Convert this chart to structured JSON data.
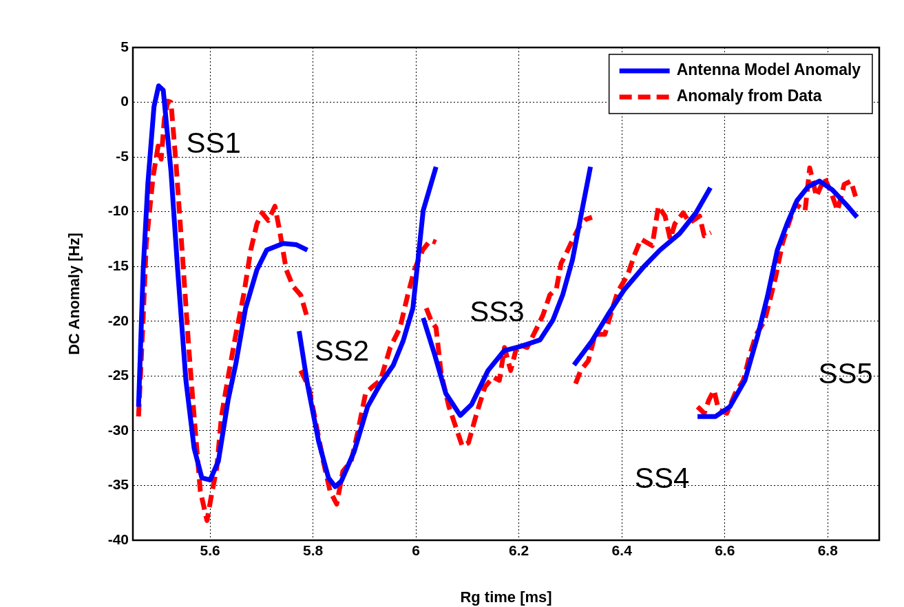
{
  "chart_data": {
    "type": "line",
    "xlabel": "Rg time [ms]",
    "ylabel": "DC Anomaly [Hz]",
    "xlim": [
      5.45,
      6.9
    ],
    "xticks": [
      5.6,
      5.8,
      6,
      6.2,
      6.4,
      6.6,
      6.8
    ],
    "ylim": [
      -40,
      5
    ],
    "yticks": [
      -40,
      -35,
      -30,
      -25,
      -20,
      -15,
      -10,
      -5,
      0,
      5
    ],
    "grid": true,
    "legend": "top right",
    "marker": "none",
    "annotations": [
      "SS1",
      "SS2",
      "SS3",
      "SS4",
      "SS5"
    ],
    "series": [
      {
        "name": "Antenna Model Anomaly",
        "color": "#0000ff",
        "line_style": "solid",
        "x": [
          5.461,
          5.47,
          5.479,
          5.491,
          5.5,
          5.509,
          5.524,
          5.537,
          5.553,
          5.569,
          5.584,
          5.6,
          5.616,
          5.635,
          5.65,
          5.669,
          5.691,
          5.71,
          5.742,
          5.767,
          5.789,
          5.78,
          5.773,
          5.789,
          5.811,
          5.83,
          5.843,
          5.855,
          5.88,
          5.906,
          5.931,
          5.956,
          5.975,
          5.994,
          6.014,
          6.039,
          6.03,
          6.014,
          6.036,
          6.058,
          6.086,
          6.108,
          6.14,
          6.171,
          6.203,
          6.241,
          6.266,
          6.285,
          6.304,
          6.32,
          6.339,
          6.32,
          6.307,
          6.342,
          6.373,
          6.405,
          6.443,
          6.474,
          6.512,
          6.544,
          6.572,
          6.56,
          6.547,
          6.582,
          6.61,
          6.639,
          6.664,
          6.683,
          6.702,
          6.721,
          6.74,
          6.762,
          6.784,
          6.809,
          6.835,
          6.857
        ],
        "values": [
          -27.8,
          -15.3,
          -7.5,
          -0.4,
          1.5,
          1.1,
          -6.3,
          -15.3,
          -25.4,
          -31.6,
          -34.3,
          -34.5,
          -32.8,
          -27.2,
          -23.9,
          -18.8,
          -15.3,
          -13.5,
          -12.9,
          -13.0,
          -13.5,
          null,
          -20.9,
          -25.7,
          -31.0,
          -34.3,
          -35.1,
          -34.6,
          -31.9,
          -27.8,
          -25.7,
          -24.0,
          -21.8,
          -18.8,
          -9.9,
          -5.9,
          null,
          -19.7,
          -23.0,
          -26.6,
          -28.6,
          -27.6,
          -24.5,
          -22.7,
          -22.3,
          -21.7,
          -19.9,
          -17.6,
          -14.4,
          -10.5,
          -5.9,
          null,
          -24.0,
          -21.8,
          -19.4,
          -17.1,
          -15.0,
          -13.5,
          -12.0,
          -10.1,
          -7.8,
          null,
          -28.7,
          -28.7,
          -27.8,
          -25.4,
          -21.3,
          -17.7,
          -13.5,
          -11.1,
          -9.0,
          -7.7,
          -7.2,
          -8.0,
          -9.3,
          -10.5
        ]
      },
      {
        "name": "Anomaly from Data",
        "color": "#ff0000",
        "line_style": "dashed",
        "x": [
          5.461,
          5.47,
          5.476,
          5.489,
          5.499,
          5.505,
          5.511,
          5.518,
          5.524,
          5.534,
          5.546,
          5.559,
          5.569,
          5.581,
          5.594,
          5.603,
          5.613,
          5.622,
          5.635,
          5.65,
          5.666,
          5.679,
          5.691,
          5.701,
          5.713,
          5.726,
          5.735,
          5.748,
          5.761,
          5.776,
          5.789,
          5.782,
          5.776,
          5.792,
          5.808,
          5.82,
          5.833,
          5.846,
          5.858,
          5.874,
          5.887,
          5.902,
          5.915,
          5.931,
          5.95,
          5.969,
          5.984,
          5.997,
          6.013,
          6.028,
          6.039,
          6.03,
          6.02,
          6.03,
          6.039,
          6.049,
          6.064,
          6.077,
          6.09,
          6.102,
          6.118,
          6.134,
          6.15,
          6.162,
          6.172,
          6.184,
          6.197,
          6.216,
          6.235,
          6.247,
          6.26,
          6.273,
          6.282,
          6.292,
          6.304,
          6.317,
          6.33,
          6.342,
          6.325,
          6.31,
          6.32,
          6.335,
          6.348,
          6.367,
          6.38,
          6.392,
          6.411,
          6.424,
          6.437,
          6.459,
          6.471,
          6.484,
          6.494,
          6.503,
          6.519,
          6.532,
          6.551,
          6.56,
          6.573,
          6.56,
          6.547,
          6.56,
          6.569,
          6.579,
          6.588,
          6.604,
          6.62,
          6.636,
          6.649,
          6.661,
          6.677,
          6.687,
          6.699,
          6.712,
          6.724,
          6.737,
          6.756,
          6.765,
          6.778,
          6.794,
          6.807,
          6.819,
          6.832,
          6.845,
          6.854
        ],
        "values": [
          -28.7,
          -19.7,
          -12.9,
          -6.9,
          -4.0,
          -5.2,
          -1.6,
          0.1,
          0,
          -5.7,
          -13.8,
          -22.7,
          -28.7,
          -35.5,
          -38.2,
          -35.8,
          -33.4,
          -28.7,
          -25.1,
          -21.2,
          -17.4,
          -13.5,
          -11.1,
          -10.1,
          -10.8,
          -9.5,
          -11.7,
          -15.3,
          -16.8,
          -17.6,
          -19.7,
          null,
          -24.5,
          -26.0,
          -29.9,
          -32.8,
          -35.5,
          -36.7,
          -33.7,
          -32.8,
          -30.1,
          -26.6,
          -26.0,
          -25.4,
          -22.4,
          -20.6,
          -17.6,
          -15.3,
          -13.5,
          -12.6,
          -12.8,
          null,
          -18.8,
          -20.0,
          -20.6,
          -24.8,
          -27.8,
          -29.6,
          -31.4,
          -31.1,
          -28.4,
          -26.0,
          -25.1,
          -25.4,
          -22.4,
          -24.5,
          -22.1,
          -22.4,
          -20.6,
          -19.4,
          -17.6,
          -17.0,
          -14.7,
          -13.8,
          -12.6,
          -11.4,
          -10.7,
          -10.5,
          null,
          -25.7,
          -24.5,
          -23.6,
          -21.2,
          -21.2,
          -19.1,
          -17.3,
          -15.8,
          -14.0,
          -12.5,
          -13.1,
          -9.5,
          -10.4,
          -12.5,
          -11.1,
          -10.1,
          -11.0,
          -10.4,
          -12.2,
          -11.9,
          null,
          -27.8,
          -28.4,
          -27.2,
          -26.3,
          -28.1,
          -28.4,
          -26.6,
          -25.4,
          -23.0,
          -21.2,
          -20.0,
          -18.2,
          -15.9,
          -12.9,
          -11.1,
          -9.3,
          -9.9,
          -6.0,
          -8.6,
          -6.9,
          -8.3,
          -9.9,
          -7.5,
          -7.2,
          -8.6
        ]
      }
    ]
  }
}
